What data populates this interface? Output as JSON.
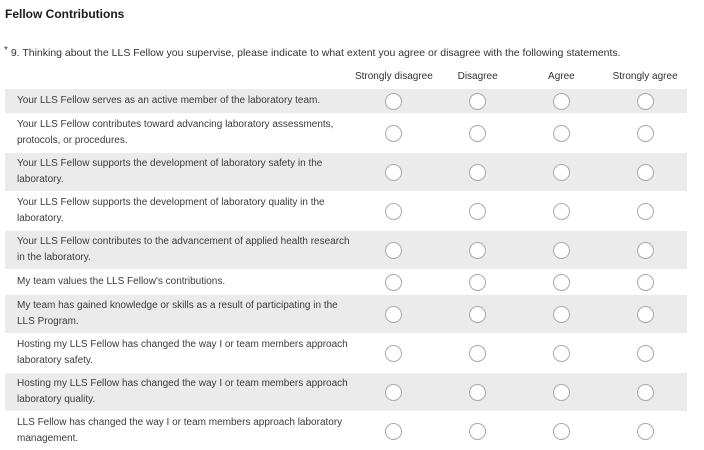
{
  "page": {
    "title": "Fellow Contributions"
  },
  "question": {
    "required_marker": "*",
    "number": "9.",
    "text": "Thinking about the LLS Fellow you supervise, please indicate to what extent you agree or disagree with the following statements."
  },
  "matrix": {
    "columns": [
      "Strongly disagree",
      "Disagree",
      "Agree",
      "Strongly agree"
    ],
    "rows": [
      "Your LLS Fellow serves as an active member of the laboratory team.",
      "Your LLS Fellow contributes toward advancing laboratory assessments, protocols, or procedures.",
      "Your LLS Fellow supports the development of laboratory safety in the laboratory.",
      "Your LLS Fellow supports the development of laboratory quality in the laboratory.",
      "Your LLS Fellow contributes to the advancement of applied health research in the laboratory.",
      "My team values the LLS Fellow's contributions.",
      "My team has gained knowledge or skills as a result of participating in the LLS Program.",
      "Hosting my LLS Fellow has changed the way I or team members approach laboratory safety.",
      "Hosting my LLS Fellow has changed the way I or team members approach laboratory quality.",
      "LLS Fellow has changed the way I or team members approach laboratory management."
    ]
  },
  "colors": {
    "row_alt_bg": "#ebebeb",
    "radio_border": "#a9a9a9",
    "text": "#3b3b3b"
  }
}
